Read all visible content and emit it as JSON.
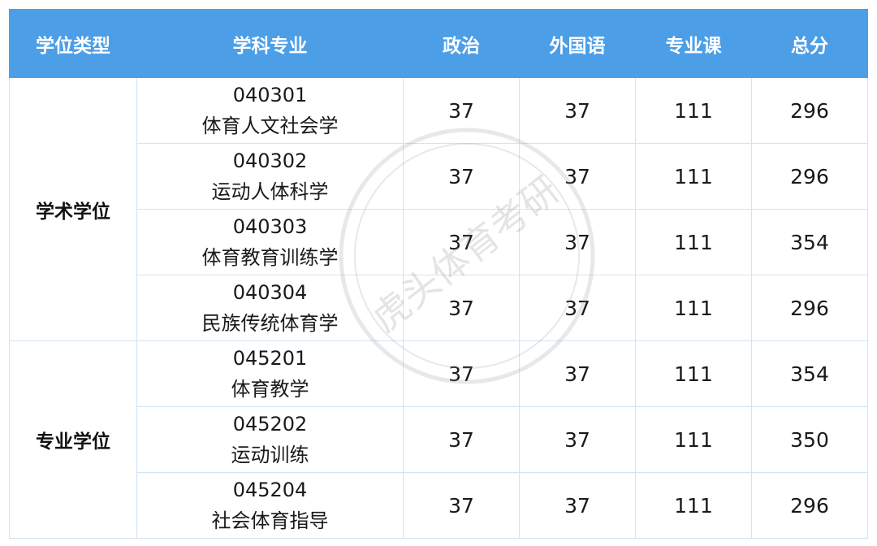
{
  "table": {
    "headers": [
      "学位类型",
      "学科专业",
      "政治",
      "外国语",
      "专业课",
      "总分"
    ],
    "groups": [
      {
        "type": "学术学位",
        "rows": [
          {
            "code": "040301",
            "name": "体育人文社会学",
            "politics": "37",
            "foreign_language": "37",
            "major_course": "111",
            "total": "296"
          },
          {
            "code": "040302",
            "name": "运动人体科学",
            "politics": "37",
            "foreign_language": "37",
            "major_course": "111",
            "total": "296"
          },
          {
            "code": "040303",
            "name": "体育教育训练学",
            "politics": "37",
            "foreign_language": "37",
            "major_course": "111",
            "total": "354"
          },
          {
            "code": "040304",
            "name": "民族传统体育学",
            "politics": "37",
            "foreign_language": "37",
            "major_course": "111",
            "total": "296"
          }
        ]
      },
      {
        "type": "专业学位",
        "rows": [
          {
            "code": "045201",
            "name": "体育教学",
            "politics": "37",
            "foreign_language": "37",
            "major_course": "111",
            "total": "354"
          },
          {
            "code": "045202",
            "name": "运动训练",
            "politics": "37",
            "foreign_language": "37",
            "major_course": "111",
            "total": "350"
          },
          {
            "code": "045204",
            "name": "社会体育指导",
            "politics": "37",
            "foreign_language": "37",
            "major_course": "111",
            "total": "296"
          }
        ]
      }
    ]
  },
  "watermark": {
    "text": "虎头体育考研",
    "color": "#9a9a9a"
  },
  "colors": {
    "header_bg": "#4c9ee7",
    "header_text": "#ffffff",
    "grid": "#cfe4f6"
  }
}
